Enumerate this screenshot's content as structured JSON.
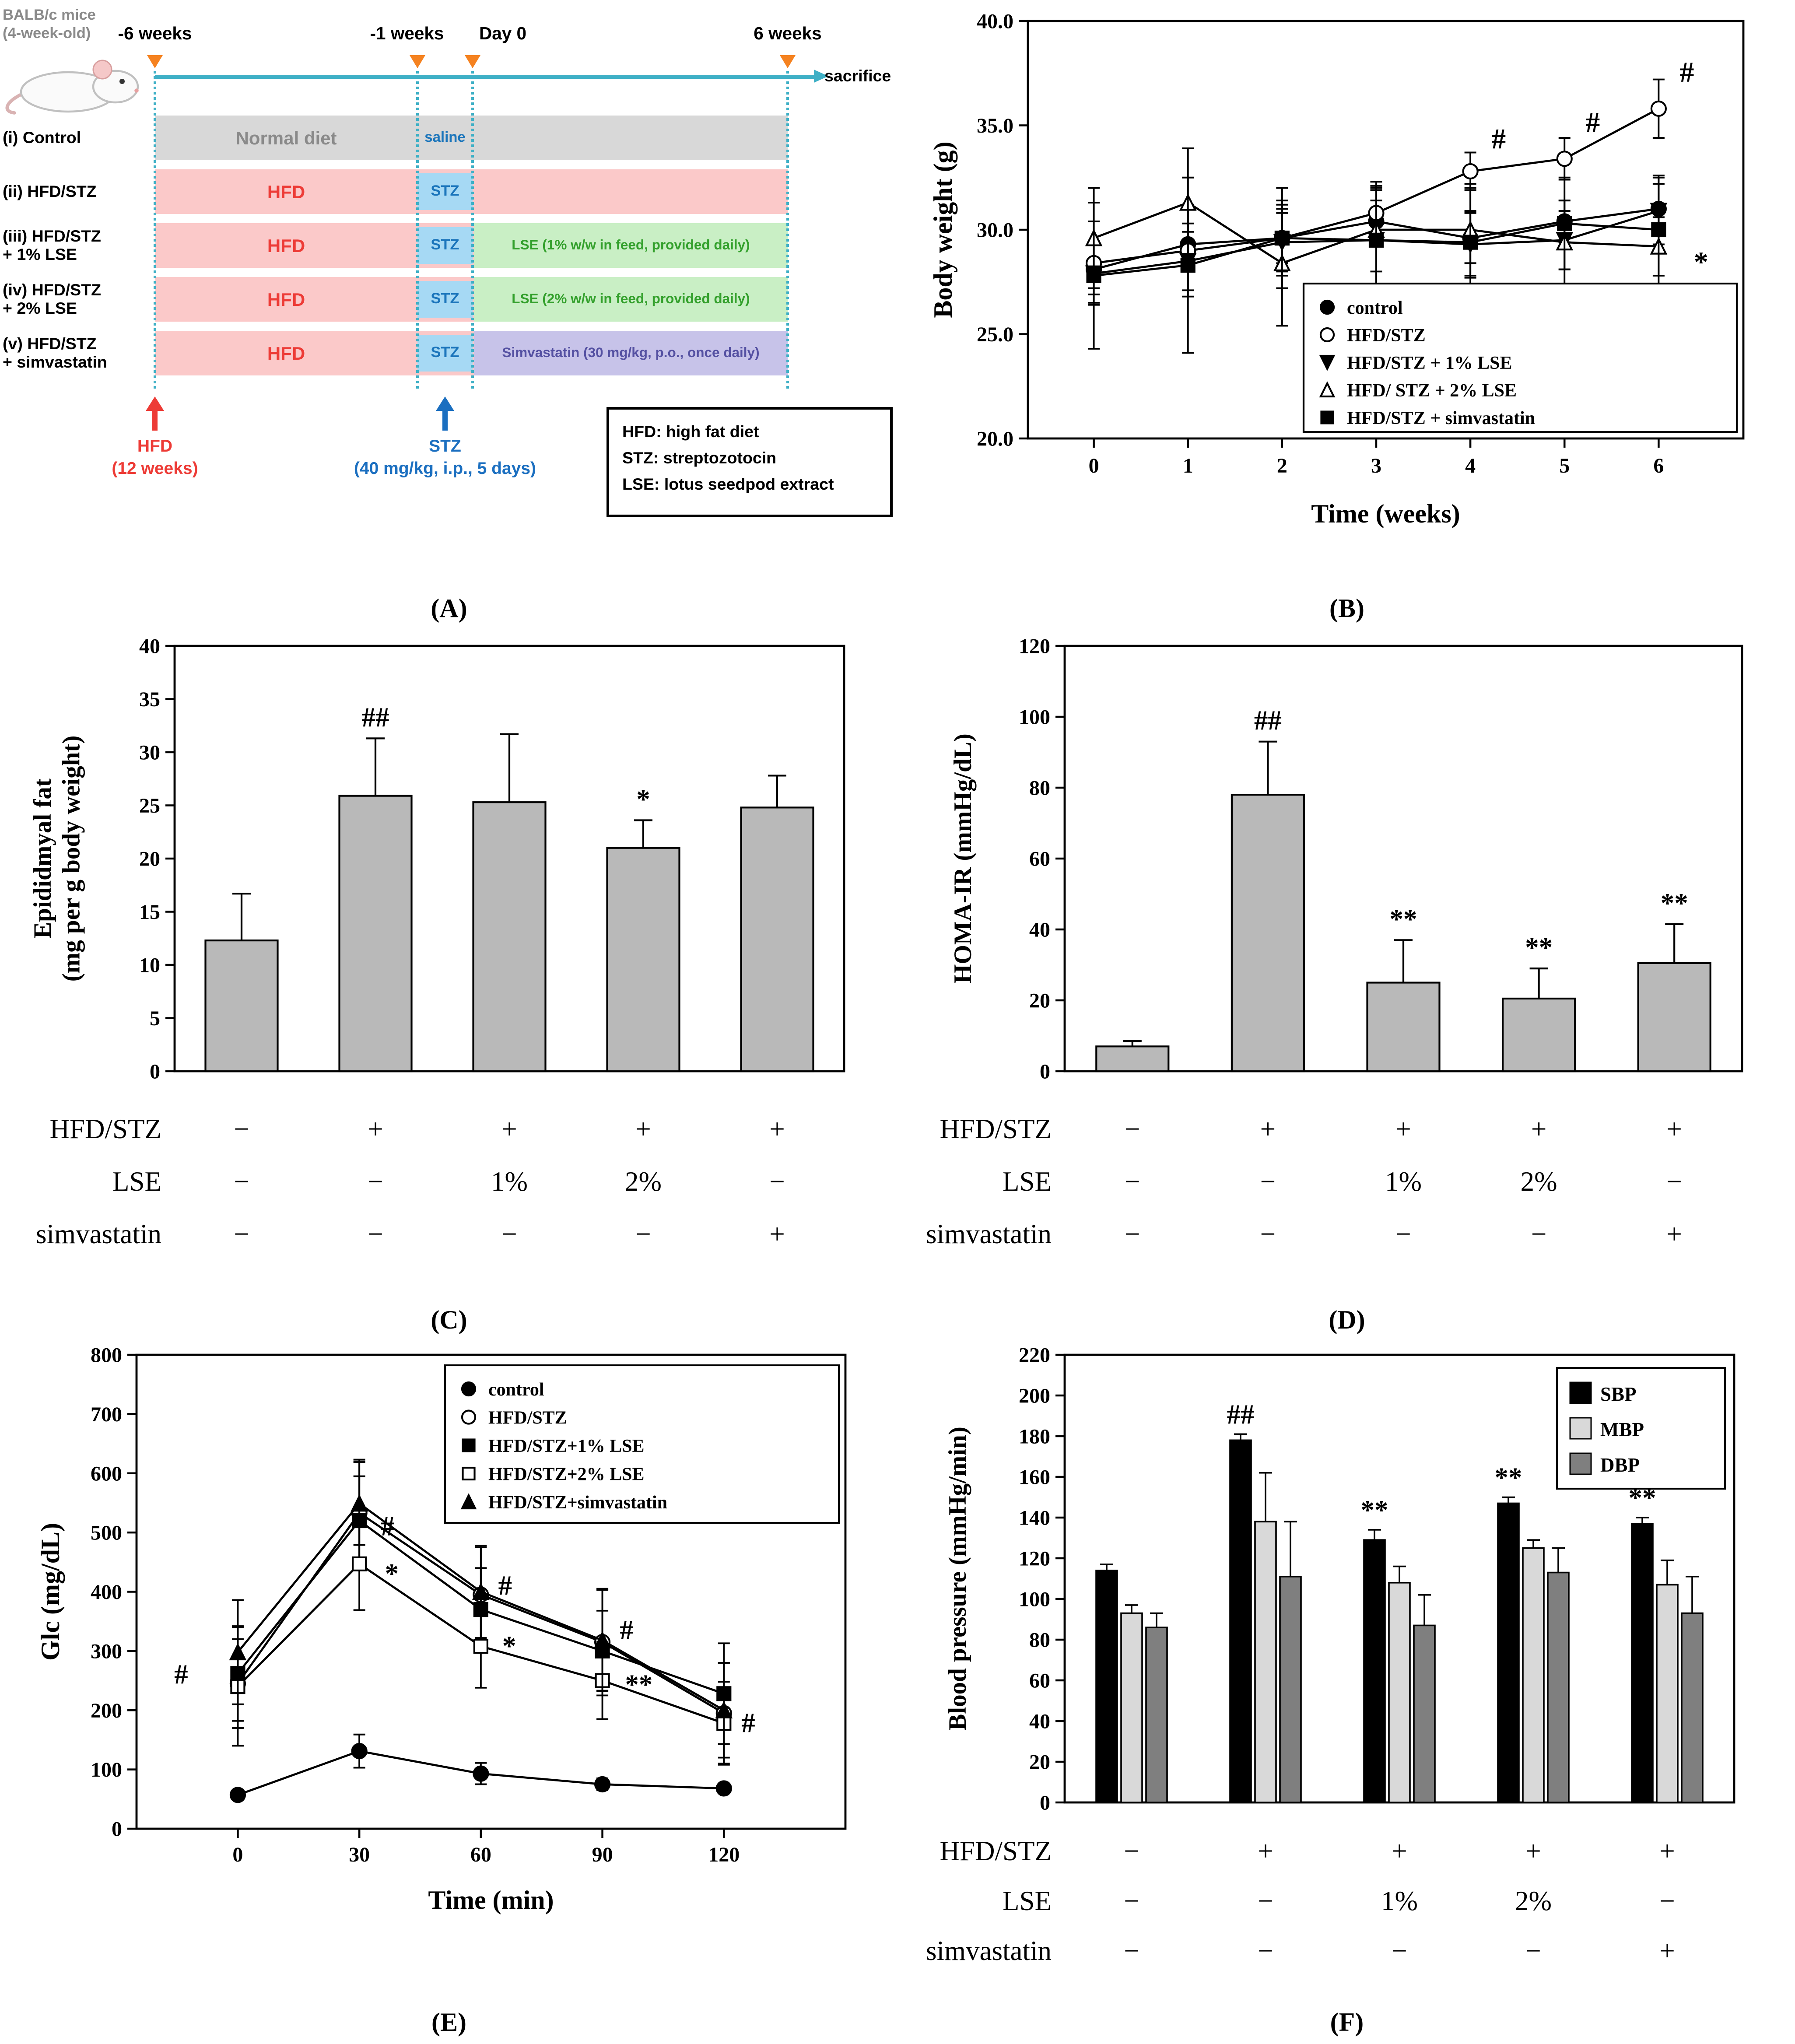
{
  "figure": {
    "panel_labels": {
      "A": "(A)",
      "B": "(B)",
      "C": "(C)",
      "D": "(D)",
      "E": "(E)",
      "F": "(F)"
    }
  },
  "panelA": {
    "mouse_caption": "BALB/c mice\n(4-week-old)",
    "time_labels": [
      "-6 weeks",
      "-1 weeks",
      "Day 0",
      "6 weeks"
    ],
    "sacrifice_label": "sacrifice",
    "rows": [
      {
        "label": "(i) Control",
        "base_color": "#d8d8d8",
        "base_text": "Normal diet",
        "base_text_color": "#8a8a8a",
        "mid_text": "saline",
        "mid_box": false,
        "post_text": "",
        "post_color": "",
        "post_text_color": ""
      },
      {
        "label": "(ii) HFD/STZ",
        "base_color": "#fbc9c9",
        "base_text": "HFD",
        "base_text_color": "#ed3b36",
        "mid_text": "STZ",
        "mid_box": true,
        "post_text": "",
        "post_color": "",
        "post_text_color": ""
      },
      {
        "label": "(iii) HFD/STZ\n+ 1% LSE",
        "base_color": "#fbc9c9",
        "base_text": "HFD",
        "base_text_color": "#ed3b36",
        "mid_text": "STZ",
        "mid_box": true,
        "post_text": "LSE (1% w/w in feed, provided daily)",
        "post_color": "#c9efc5",
        "post_text_color": "#33a02c"
      },
      {
        "label": "(iv) HFD/STZ\n+ 2% LSE",
        "base_color": "#fbc9c9",
        "base_text": "HFD",
        "base_text_color": "#ed3b36",
        "mid_text": "STZ",
        "mid_box": true,
        "post_text": "LSE (2% w/w in feed, provided daily)",
        "post_color": "#c9efc5",
        "post_text_color": "#33a02c"
      },
      {
        "label": "(v) HFD/STZ\n+ simvastatin",
        "base_color": "#fbc9c9",
        "base_text": "HFD",
        "base_text_color": "#ed3b36",
        "mid_text": "STZ",
        "mid_box": true,
        "post_text": "Simvastatin (30 mg/kg, p.o., once daily)",
        "post_color": "#c7c3e9",
        "post_text_color": "#5551a2"
      }
    ],
    "hfd_note": "HFD\n(12 weeks)",
    "stz_note": "STZ\n(40 mg/kg, i.p., 5 days)",
    "legend_lines": [
      "HFD: high fat diet",
      "STZ: streptozotocin",
      "LSE: lotus seedpod extract"
    ],
    "colors": {
      "timeline": "#3fb0c6",
      "marker": "#f58220",
      "stz_box": "#a6d9f4",
      "stz_text": "#1b75bb",
      "hfd_red": "#ed3b36",
      "stz_blue": "#1b6fc0",
      "gray_text": "#8a8a8a"
    }
  },
  "chart_data": [
    {
      "panel": "B",
      "name": "body-weight-chart",
      "type": "line",
      "xlabel": "Time (weeks)",
      "ylabel": "Body weight (g)",
      "x": [
        0,
        1,
        2,
        3,
        4,
        5,
        6
      ],
      "xticks": [
        0,
        1,
        2,
        3,
        4,
        5,
        6
      ],
      "xlim": [
        -0.7,
        6.9
      ],
      "ylim": [
        20,
        40
      ],
      "yticks": [
        20,
        25,
        30,
        35,
        40
      ],
      "ytick_decimals": 1,
      "legend_position": "bottom-right",
      "series": [
        {
          "name": "control",
          "marker": "circle-filled",
          "values": [
            28.1,
            29.3,
            29.6,
            30.4,
            29.6,
            30.4,
            31.0
          ],
          "errors": [
            1.2,
            1.0,
            1.2,
            1.0,
            1.2,
            1.0,
            1.2
          ]
        },
        {
          "name": "HFD/STZ",
          "marker": "circle-open",
          "values": [
            28.4,
            29.0,
            29.6,
            30.8,
            32.8,
            33.4,
            35.8
          ],
          "errors": [
            2.0,
            2.2,
            1.6,
            1.5,
            0.9,
            1.0,
            1.4
          ]
        },
        {
          "name": "HFD/STZ + 1% LSE",
          "marker": "triangle-down-filled",
          "values": [
            27.9,
            28.5,
            29.4,
            29.5,
            29.3,
            29.5,
            30.9
          ],
          "errors": [
            1.4,
            1.4,
            1.6,
            2.6,
            1.6,
            1.4,
            1.6
          ]
        },
        {
          "name": "HFD/ STZ + 2% LSE",
          "marker": "triangle-up-open",
          "values": [
            29.6,
            31.3,
            28.4,
            30.0,
            30.0,
            29.4,
            29.2
          ],
          "errors": [
            2.4,
            2.6,
            3.0,
            2.0,
            2.2,
            2.0,
            1.4
          ]
        },
        {
          "name": "HFD/STZ + simvastatin",
          "marker": "square-filled",
          "values": [
            27.8,
            28.3,
            29.6,
            29.5,
            29.4,
            30.3,
            30.0
          ],
          "errors": [
            3.5,
            4.2,
            2.4,
            2.4,
            2.6,
            2.2,
            2.6
          ]
        }
      ],
      "annotations": [
        {
          "x": 4.3,
          "y": 33.9,
          "text": "#"
        },
        {
          "x": 5.3,
          "y": 34.7,
          "text": "#"
        },
        {
          "x": 6.3,
          "y": 37.1,
          "text": "#"
        },
        {
          "x": 6.45,
          "y": 28.0,
          "text": "*"
        }
      ]
    },
    {
      "panel": "C",
      "name": "epididymal-fat-chart",
      "type": "bar",
      "ylabel": [
        "Epididmyal fat",
        "(mg per g body weight)"
      ],
      "ylim": [
        0,
        40
      ],
      "yticks": [
        0,
        5,
        10,
        15,
        20,
        25,
        30,
        35,
        40
      ],
      "bar_color": "#b9b9b9",
      "categories": [
        "control",
        "HFD/STZ",
        "HFD/STZ + 1% LSE",
        "HFD/STZ + 2% LSE",
        "HFD/STZ + simvastatin"
      ],
      "values": [
        12.3,
        25.9,
        25.3,
        21.0,
        24.8
      ],
      "errors": [
        4.4,
        5.4,
        6.4,
        2.6,
        3.0
      ],
      "annotations": [
        "",
        "##",
        "",
        "*",
        ""
      ],
      "group_table": {
        "rows": [
          {
            "label": "HFD/STZ",
            "values": [
              "−",
              "+",
              "+",
              "+",
              "+"
            ]
          },
          {
            "label": "LSE",
            "values": [
              "−",
              "−",
              "1%",
              "2%",
              "−"
            ]
          },
          {
            "label": "simvastatin",
            "values": [
              "−",
              "−",
              "−",
              "−",
              "+"
            ]
          }
        ]
      }
    },
    {
      "panel": "D",
      "name": "homa-ir-chart",
      "type": "bar",
      "ylabel": "HOMA-IR (mmHg/dL)",
      "ylim": [
        0,
        120
      ],
      "yticks": [
        0,
        20,
        40,
        60,
        80,
        100,
        120
      ],
      "bar_color": "#b9b9b9",
      "categories": [
        "control",
        "HFD/STZ",
        "HFD/STZ + 1% LSE",
        "HFD/STZ + 2% LSE",
        "HFD/STZ + simvastatin"
      ],
      "values": [
        7,
        78,
        25,
        20.5,
        30.5
      ],
      "errors": [
        1.5,
        15,
        12,
        8.5,
        11
      ],
      "annotations": [
        "",
        "##",
        "**",
        "**",
        "**"
      ],
      "group_table": {
        "rows": [
          {
            "label": "HFD/STZ",
            "values": [
              "−",
              "+",
              "+",
              "+",
              "+"
            ]
          },
          {
            "label": "LSE",
            "values": [
              "−",
              "−",
              "1%",
              "2%",
              "−"
            ]
          },
          {
            "label": "simvastatin",
            "values": [
              "−",
              "−",
              "−",
              "−",
              "+"
            ]
          }
        ]
      }
    },
    {
      "panel": "E",
      "name": "ogtt-glucose-chart",
      "type": "line",
      "xlabel": "Time (min)",
      "ylabel": "Glc (mg/dL)",
      "x": [
        0,
        30,
        60,
        90,
        120
      ],
      "xticks": [
        0,
        30,
        60,
        90,
        120
      ],
      "xlim": [
        -25,
        150
      ],
      "ylim": [
        0,
        800
      ],
      "yticks": [
        0,
        100,
        200,
        300,
        400,
        500,
        600,
        700,
        800
      ],
      "ytick_decimals": 0,
      "legend_position": "top-right",
      "series": [
        {
          "name": "control",
          "marker": "circle-filled",
          "values": [
            57,
            131,
            93,
            75,
            68
          ],
          "errors": [
            8,
            28,
            18,
            10,
            8
          ]
        },
        {
          "name": "HFD/STZ",
          "marker": "circle-open",
          "values": [
            245,
            533,
            395,
            315,
            195
          ],
          "errors": [
            75,
            90,
            80,
            90,
            85
          ]
        },
        {
          "name": "HFD/STZ+1% LSE",
          "marker": "square-filled",
          "values": [
            262,
            520,
            370,
            300,
            228
          ],
          "errors": [
            80,
            75,
            70,
            68,
            85
          ]
        },
        {
          "name": "HFD/STZ+2% LSE",
          "marker": "square-open",
          "values": [
            240,
            447,
            308,
            250,
            178
          ],
          "errors": [
            100,
            78,
            70,
            65,
            70
          ]
        },
        {
          "name": "HFD/STZ+simvastatin",
          "marker": "triangle-up-filled",
          "values": [
            298,
            549,
            400,
            318,
            200
          ],
          "errors": [
            88,
            70,
            78,
            85,
            80
          ]
        }
      ],
      "annotations": [
        {
          "x": -14,
          "y": 245,
          "text": "#"
        },
        {
          "x": 37,
          "y": 495,
          "text": "#"
        },
        {
          "x": 38,
          "y": 415,
          "text": "*"
        },
        {
          "x": 66,
          "y": 395,
          "text": "#"
        },
        {
          "x": 67,
          "y": 293,
          "text": "*"
        },
        {
          "x": 96,
          "y": 320,
          "text": "#"
        },
        {
          "x": 99,
          "y": 228,
          "text": "**"
        },
        {
          "x": 126,
          "y": 163,
          "text": "#"
        }
      ]
    },
    {
      "panel": "F",
      "name": "blood-pressure-chart",
      "type": "grouped-bar",
      "ylabel": "Blood pressure (mmHg/min)",
      "ylim": [
        0,
        220
      ],
      "yticks": [
        0,
        20,
        40,
        60,
        80,
        100,
        120,
        140,
        160,
        180,
        200,
        220
      ],
      "categories": [
        "control",
        "HFD/STZ",
        "HFD/STZ + 1% LSE",
        "HFD/STZ + 2% LSE",
        "HFD/STZ + simvastatin"
      ],
      "series": [
        {
          "name": "SBP",
          "color": "#000000",
          "values": [
            114,
            178,
            129,
            147,
            137
          ],
          "errors": [
            3,
            3,
            5,
            3,
            3
          ]
        },
        {
          "name": "MBP",
          "color": "#d9d9d9",
          "values": [
            93,
            138,
            108,
            125,
            107
          ],
          "errors": [
            4,
            24,
            8,
            4,
            12
          ]
        },
        {
          "name": "DBP",
          "color": "#7f7f7f",
          "values": [
            86,
            111,
            87,
            113,
            93
          ],
          "errors": [
            7,
            27,
            15,
            12,
            18
          ]
        }
      ],
      "annotations": [
        {
          "group": 1,
          "text": "##"
        },
        {
          "group": 2,
          "text": "**"
        },
        {
          "group": 3,
          "text": "**"
        },
        {
          "group": 4,
          "text": "**"
        }
      ],
      "group_table": {
        "rows": [
          {
            "label": "HFD/STZ",
            "values": [
              "−",
              "+",
              "+",
              "+",
              "+"
            ]
          },
          {
            "label": "LSE",
            "values": [
              "−",
              "−",
              "1%",
              "2%",
              "−"
            ]
          },
          {
            "label": "simvastatin",
            "values": [
              "−",
              "−",
              "−",
              "−",
              "+"
            ]
          }
        ]
      }
    }
  ]
}
